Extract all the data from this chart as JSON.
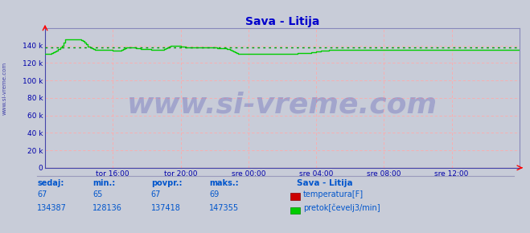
{
  "title": "Sava - Litija",
  "title_color": "#0000cc",
  "bg_color": "#c8ccd8",
  "plot_bg_color": "#c8ccd8",
  "fig_bg_color": "#c8ccd8",
  "grid_color_h": "#aaaadd",
  "grid_color_v": "#ffaaaa",
  "tick_color": "#0000aa",
  "line_color_flow": "#00cc00",
  "line_color_temp": "#cc0000",
  "avg_line_color": "#009900",
  "ylim": [
    0,
    160000
  ],
  "ytick_vals": [
    0,
    20000,
    40000,
    60000,
    80000,
    100000,
    120000,
    140000
  ],
  "ytick_labels": [
    "0",
    "20 k",
    "40 k",
    "60 k",
    "80 k",
    "100 k",
    "120 k",
    "140 k"
  ],
  "x_tick_labels": [
    "tor 16:00",
    "tor 20:00",
    "sre 00:00",
    "sre 04:00",
    "sre 08:00",
    "sre 12:00"
  ],
  "avg_value": 137418,
  "station_label": "Sava - Litija",
  "sedaj_label": "sedaj:",
  "min_label": "min.:",
  "povpr_label": "povpr.:",
  "maks_label": "maks.:",
  "temp_sedaj": "67",
  "temp_min": "65",
  "temp_povpr": "67",
  "temp_maks": "69",
  "flow_sedaj": "134387",
  "flow_min": "128136",
  "flow_povpr": "137418",
  "flow_maks": "147355",
  "legend_temp": "temperatura[F]",
  "legend_flow": "pretok[čevelj3/min]",
  "watermark": "www.si-vreme.com",
  "watermark_color": "#3333aa",
  "watermark_alpha": 0.25,
  "watermark_fontsize": 26,
  "left_label": "www.si-vreme.com",
  "flow_data": [
    130000,
    130000,
    130000,
    130000,
    131000,
    132000,
    133000,
    134000,
    136000,
    138000,
    140000,
    143000,
    147000,
    147000,
    147000,
    147000,
    147000,
    147000,
    147000,
    147000,
    147000,
    147000,
    146000,
    145000,
    143000,
    141000,
    139000,
    138000,
    137000,
    136000,
    135000,
    135000,
    135000,
    135000,
    135000,
    135000,
    135000,
    135000,
    135000,
    135000,
    135000,
    134000,
    134000,
    134000,
    134000,
    134000,
    135000,
    136000,
    137000,
    138000,
    138000,
    138000,
    138000,
    138000,
    138000,
    137000,
    137000,
    137000,
    136000,
    136000,
    136000,
    136000,
    136000,
    136000,
    135000,
    135000,
    135000,
    135000,
    135000,
    135000,
    135000,
    135000,
    136000,
    137000,
    138000,
    139000,
    140000,
    140000,
    140000,
    140000,
    140000,
    140000,
    139000,
    139000,
    139000,
    138000,
    138000,
    138000,
    138000,
    138000,
    138000,
    138000,
    138000,
    138000,
    138000,
    138000,
    138000,
    138000,
    138000,
    138000,
    138000,
    138000,
    138000,
    138000,
    137000,
    137000,
    137000,
    137000,
    137000,
    137000,
    136000,
    136000,
    135000,
    134000,
    133000,
    132000,
    131000,
    130000,
    130000,
    130000,
    130000,
    130000,
    130000,
    130000,
    130000,
    130000,
    130000,
    130000,
    130000,
    130000,
    130000,
    130000,
    130000,
    130000,
    130000,
    130000,
    130000,
    130000,
    130000,
    130000,
    130000,
    130000,
    130000,
    130000,
    130000,
    130000,
    130000,
    130000,
    130000,
    130000,
    130000,
    130000,
    130000,
    131000,
    131000,
    131000,
    131000,
    131000,
    131000,
    131000,
    131000,
    132000,
    132000,
    132000,
    133000,
    133000,
    133000,
    134000,
    134000,
    134000,
    134000,
    134000,
    135000,
    135000,
    135000,
    135000,
    135000,
    135000,
    135000,
    135000,
    135000,
    135000,
    135000,
    135000,
    135000,
    135000,
    135000,
    135000,
    135000,
    135000,
    135000,
    135000,
    135000,
    135000,
    135000,
    135000,
    135000,
    135000,
    135000,
    135000,
    135000,
    135000,
    135000,
    135000,
    135000,
    135000,
    135000,
    135000,
    135000,
    135000,
    135000,
    135000,
    135000,
    135000,
    135000,
    135000,
    135000,
    135000,
    135000,
    135000,
    135000,
    135000,
    135000,
    135000,
    135000,
    135000,
    135000,
    135000,
    135000,
    135000,
    135000,
    135000,
    135000,
    135000,
    135000,
    135000,
    135000,
    135000,
    135000,
    135000,
    135000,
    135000,
    135000,
    135000,
    135000,
    135000,
    135000,
    135000,
    135000,
    135000,
    135000,
    135000,
    135000,
    135000,
    135000,
    135000,
    135000,
    135000,
    135000,
    135000,
    135000,
    135000,
    135000,
    135000,
    135000,
    135000,
    135000,
    135000,
    135000,
    135000,
    135000,
    135000,
    135000,
    135000,
    135000,
    135000,
    135000,
    135000,
    135000,
    135000,
    135000,
    135000,
    135000,
    135000,
    135000,
    135000,
    135000,
    135000
  ]
}
